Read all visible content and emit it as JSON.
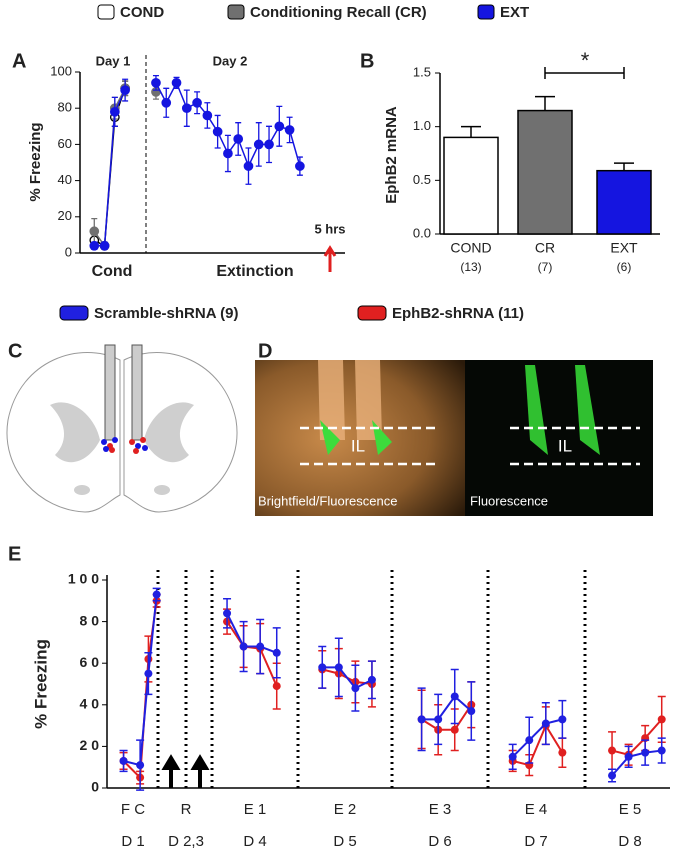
{
  "panel_labels": [
    "A",
    "B",
    "C",
    "D",
    "E"
  ],
  "chart_data": [
    {
      "type": "line",
      "ylabel": "% Freezing",
      "day_labels": [
        "Day 1",
        "Day 2"
      ],
      "phase_labels": [
        "Cond",
        "Extinction"
      ],
      "time_label": "5 hrs",
      "xlim": [
        0,
        25
      ],
      "ylim": [
        0,
        100
      ],
      "yticks": [
        0,
        20,
        40,
        60,
        80,
        100
      ],
      "series": [
        {
          "name": "COND",
          "color": "#ffffff",
          "x": [
            1,
            2,
            3,
            4
          ],
          "values": [
            7,
            4,
            75,
            91
          ],
          "errors": [
            3,
            2,
            5,
            4
          ]
        },
        {
          "name": "Conditioning Recall (CR)",
          "color": "#707070",
          "x": [
            1,
            2,
            3,
            4,
            7
          ],
          "values": [
            12,
            4,
            80,
            91,
            89
          ],
          "errors": [
            7,
            2,
            6,
            4,
            4
          ]
        },
        {
          "name": "EXT",
          "color": "#1515e0",
          "x": [
            1,
            2,
            3,
            4,
            7,
            8,
            9,
            10,
            11,
            12,
            13,
            14,
            15,
            16,
            17,
            18,
            19,
            20,
            21
          ],
          "values": [
            4,
            4,
            78,
            90,
            94,
            83,
            94,
            80,
            83,
            76,
            67,
            55,
            63,
            48,
            60,
            60,
            70,
            68,
            48
          ],
          "errors": [
            2,
            2,
            8,
            6,
            4,
            8,
            3,
            10,
            6,
            7,
            9,
            10,
            9,
            10,
            12,
            10,
            11,
            7,
            5
          ]
        }
      ]
    },
    {
      "type": "bar",
      "ylabel": "EphB2 mRNA",
      "categories": [
        "COND",
        "CR",
        "EXT"
      ],
      "n_labels": [
        "(13)",
        "(7)",
        "(6)"
      ],
      "values": [
        0.9,
        1.15,
        0.59
      ],
      "errors": [
        0.1,
        0.13,
        0.07
      ],
      "colors": [
        "#ffffff",
        "#707070",
        "#1515e0"
      ],
      "ylim": [
        0,
        1.5
      ],
      "yticks": [
        {
          "value": 0,
          "label": "0.0"
        },
        {
          "value": 0.5,
          "label": "0.5"
        },
        {
          "value": 1,
          "label": "1.0"
        },
        {
          "value": 1.5,
          "label": "1.5"
        }
      ],
      "significance": "*"
    },
    {
      "type": "line",
      "ylabel": "% Freezing",
      "sessions": [
        "F C",
        "R",
        "E 1",
        "E 2",
        "E 3",
        "E 4",
        "E 5"
      ],
      "days": [
        "D 1",
        "D 2,3",
        "D 4",
        "D 5",
        "D 6",
        "D 7",
        "D 8"
      ],
      "xlim": [
        0,
        68
      ],
      "ylim": [
        0,
        100
      ],
      "yticks": [
        0,
        {
          "value": 20,
          "label": "2 0"
        },
        {
          "value": 40,
          "label": "4 0"
        },
        {
          "value": 60,
          "label": "6 0"
        },
        {
          "value": 80,
          "label": "8 0"
        },
        {
          "value": 100,
          "label": "1 0 0"
        }
      ],
      "x": [
        2,
        4,
        5,
        6,
        14.5,
        16.5,
        18.5,
        20.5,
        26,
        28,
        30,
        32,
        38,
        40,
        42,
        44,
        49,
        51,
        53,
        55,
        61,
        63,
        65,
        67
      ],
      "series": [
        {
          "name": "Scramble-shRNA (9)",
          "color": "#2020e0",
          "values": [
            13,
            11,
            55,
            93,
            84,
            68,
            68,
            65,
            58,
            58,
            48,
            52,
            33,
            33,
            44,
            37,
            15,
            23,
            31,
            33,
            6,
            15,
            17,
            18
          ],
          "errors": [
            5,
            12,
            10,
            3,
            7,
            12,
            13,
            12,
            10,
            14,
            11,
            9,
            15,
            12,
            13,
            14,
            6,
            11,
            10,
            9,
            3,
            5,
            6,
            6
          ]
        },
        {
          "name": "EphB2-shRNA (11)",
          "color": "#e02020",
          "values": [
            13,
            5,
            62,
            90,
            80,
            68,
            67,
            49,
            57,
            55,
            51,
            50,
            33,
            28,
            28,
            40,
            13,
            11,
            30,
            17,
            18,
            16,
            24,
            33
          ],
          "errors": [
            4,
            3,
            11,
            3,
            6,
            10,
            12,
            11,
            9,
            12,
            10,
            11,
            14,
            12,
            10,
            11,
            5,
            5,
            9,
            7,
            9,
            5,
            6,
            11
          ]
        }
      ]
    }
  ],
  "panel_d": {
    "images": [
      {
        "label": "Brightfield/Fluorescence",
        "region": "IL"
      },
      {
        "label": "Fluorescence",
        "region": "IL"
      }
    ]
  }
}
